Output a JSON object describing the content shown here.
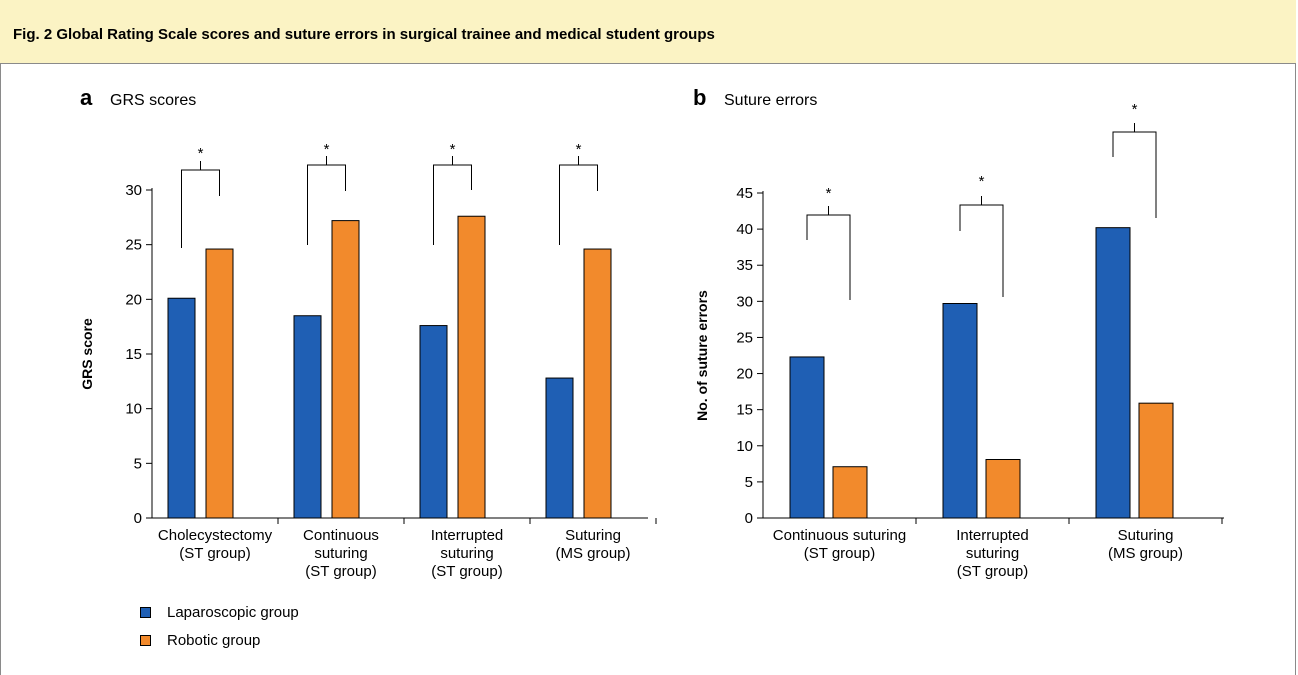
{
  "figure": {
    "title": "Fig. 2 Global Rating Scale scores and suture errors in surgical trainee and medical student groups"
  },
  "colors": {
    "laparoscopic": "#1f5fb4",
    "robotic": "#f28a2c",
    "header_bg": "#fbf3c4"
  },
  "legend": [
    {
      "label": "Laparoscopic group",
      "color": "#1f5fb4"
    },
    {
      "label": "Robotic group",
      "color": "#f28a2c"
    }
  ],
  "chart_data": [
    {
      "type": "bar",
      "panel_letter": "a",
      "title": "GRS scores",
      "xlabel": "",
      "ylabel": "GRS score",
      "ylim": [
        0,
        30
      ],
      "yticks": [
        0,
        5,
        10,
        15,
        20,
        25,
        30
      ],
      "categories": [
        [
          "Cholecystectomy",
          "(ST group)"
        ],
        [
          "Continuous",
          "suturing",
          "(ST group)"
        ],
        [
          "Interrupted",
          "suturing",
          "(ST group)"
        ],
        [
          "Suturing",
          "(MS group)"
        ]
      ],
      "series": [
        {
          "name": "Laparoscopic group",
          "values": [
            20.1,
            18.5,
            17.6,
            12.8
          ]
        },
        {
          "name": "Robotic group",
          "values": [
            24.6,
            27.2,
            27.6,
            24.6
          ]
        }
      ],
      "significance": [
        "*",
        "*",
        "*",
        "*"
      ],
      "grid": false
    },
    {
      "type": "bar",
      "panel_letter": "b",
      "title": "Suture errors",
      "xlabel": "",
      "ylabel": "No. of suture errors",
      "ylim": [
        0,
        45
      ],
      "yticks": [
        0,
        5,
        10,
        15,
        20,
        25,
        30,
        35,
        40,
        45
      ],
      "categories": [
        [
          "Continuous suturing",
          "(ST group)"
        ],
        [
          "Interrupted",
          "suturing",
          "(ST group)"
        ],
        [
          "Suturing",
          "(MS group)"
        ]
      ],
      "series": [
        {
          "name": "Laparoscopic group",
          "values": [
            22.3,
            29.7,
            40.2
          ]
        },
        {
          "name": "Robotic group",
          "values": [
            7.1,
            8.1,
            15.9
          ]
        }
      ],
      "significance": [
        "*",
        "*",
        "*"
      ],
      "grid": false
    }
  ]
}
